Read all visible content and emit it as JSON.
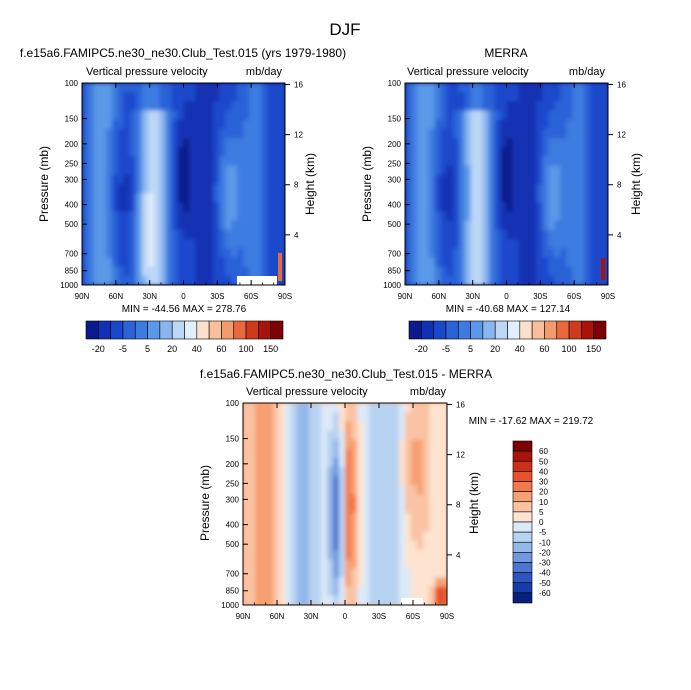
{
  "figure_title": "DJF",
  "chart_data": [
    {
      "type": "heatmap",
      "title": "f.e15a6.FAMIPC5.ne30_ne30.Club_Test.015 (yrs 1979-1980)",
      "left_label": "Vertical pressure velocity",
      "right_label": "mb/day",
      "ylabel": "Pressure (mb)",
      "y2label": "Height (km)",
      "x_ticks": [
        "90N",
        "60N",
        "30N",
        "0",
        "30S",
        "60S",
        "90S"
      ],
      "y_ticks": [
        "100",
        "150",
        "200",
        "250",
        "300",
        "400",
        "500",
        "700",
        "850",
        "1000"
      ],
      "y2_ticks": [
        "16",
        "12",
        "8",
        "4"
      ],
      "stats": "MIN = -44.56  MAX = 278.76",
      "colorbar_levels": [
        "-20",
        "-5",
        "5",
        "20",
        "40",
        "60",
        "100",
        "150"
      ],
      "features": {
        "latitude": [
          90,
          60,
          30,
          0,
          -30,
          -60,
          -90
        ],
        "pressure_mb": [
          100,
          150,
          200,
          250,
          300,
          400,
          500,
          700,
          850,
          1000
        ]
      }
    },
    {
      "type": "heatmap",
      "title": "MERRA",
      "left_label": "Vertical pressure velocity",
      "right_label": "mb/day",
      "ylabel": "Pressure (mb)",
      "y2label": "Height (km)",
      "x_ticks": [
        "90N",
        "60N",
        "30N",
        "0",
        "30S",
        "60S",
        "90S"
      ],
      "y_ticks": [
        "100",
        "150",
        "200",
        "250",
        "300",
        "400",
        "500",
        "700",
        "850",
        "1000"
      ],
      "y2_ticks": [
        "16",
        "12",
        "8",
        "4"
      ],
      "stats": "MIN = -40.68  MAX = 127.14",
      "colorbar_levels": [
        "-20",
        "-5",
        "5",
        "20",
        "40",
        "60",
        "100",
        "150"
      ]
    },
    {
      "type": "heatmap",
      "title": "f.e15a6.FAMIPC5.ne30_ne30.Club_Test.015 - MERRA",
      "left_label": "Vertical pressure velocity",
      "right_label": "mb/day",
      "ylabel": "Pressure (mb)",
      "y2label": "Height (km)",
      "x_ticks": [
        "90N",
        "60N",
        "30N",
        "0",
        "30S",
        "60S",
        "90S"
      ],
      "y_ticks": [
        "100",
        "150",
        "200",
        "250",
        "300",
        "400",
        "500",
        "700",
        "850",
        "1000"
      ],
      "y2_ticks": [
        "16",
        "12",
        "8",
        "4"
      ],
      "stats": "MIN = -17.62  MAX = 219.72",
      "colorbar_levels": [
        "60",
        "50",
        "40",
        "30",
        "20",
        "10",
        "5",
        "0",
        "-5",
        "-10",
        "-20",
        "-30",
        "-40",
        "-50",
        "-60"
      ]
    }
  ],
  "colors": {
    "abs_scale": [
      "#0a1a8c",
      "#1230b4",
      "#1a48cc",
      "#2a62d8",
      "#3c7ce0",
      "#5a98e8",
      "#8ab6f0",
      "#bcd6f6",
      "#e2eefa",
      "#fde0cc",
      "#f9bf9a",
      "#f39a6e",
      "#e8693e",
      "#d03a1c",
      "#a8140c",
      "#7a0204"
    ],
    "diff_scale": [
      "#7a0204",
      "#a8140c",
      "#cc3018",
      "#e6522c",
      "#f27a4a",
      "#f7a072",
      "#fac3a2",
      "#fde3d0",
      "#dbe9f8",
      "#b7d3f2",
      "#93b8ea",
      "#6e98df",
      "#4c76d2",
      "#2e54c0",
      "#173ba8",
      "#08217a"
    ]
  }
}
